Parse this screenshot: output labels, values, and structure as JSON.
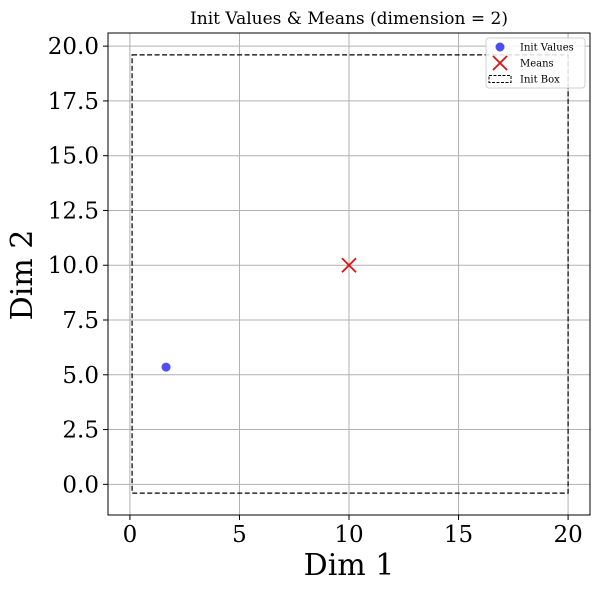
{
  "chart_data": {
    "type": "scatter",
    "title": "Init Values & Means (dimension = 2)",
    "xlabel": "Dim 1",
    "ylabel": "Dim 2",
    "xlim": [
      -1.0,
      21.0
    ],
    "ylim": [
      -1.4,
      20.6
    ],
    "xticks": [
      0,
      5,
      10,
      15,
      20
    ],
    "yticks": [
      0.0,
      2.5,
      5.0,
      7.5,
      10.0,
      12.5,
      15.0,
      17.5,
      20.0
    ],
    "xtick_labels": [
      "0",
      "5",
      "10",
      "15",
      "20"
    ],
    "ytick_labels": [
      "0.0",
      "2.5",
      "5.0",
      "7.5",
      "10.0",
      "12.5",
      "15.0",
      "17.5",
      "20.0"
    ],
    "grid": true,
    "legend_position": "top-right",
    "series": [
      {
        "name": "Init Values",
        "kind": "point",
        "color": "#3a3af0",
        "x": [
          1.65
        ],
        "y": [
          5.35
        ]
      },
      {
        "name": "Means",
        "kind": "x-marker",
        "color": "#e01010",
        "x": [
          10.0
        ],
        "y": [
          10.0
        ]
      },
      {
        "name": "Init Box",
        "kind": "dashed-rect",
        "color": "#000000",
        "x": [
          0.1,
          20.0
        ],
        "y": [
          -0.4,
          19.6
        ]
      }
    ]
  }
}
